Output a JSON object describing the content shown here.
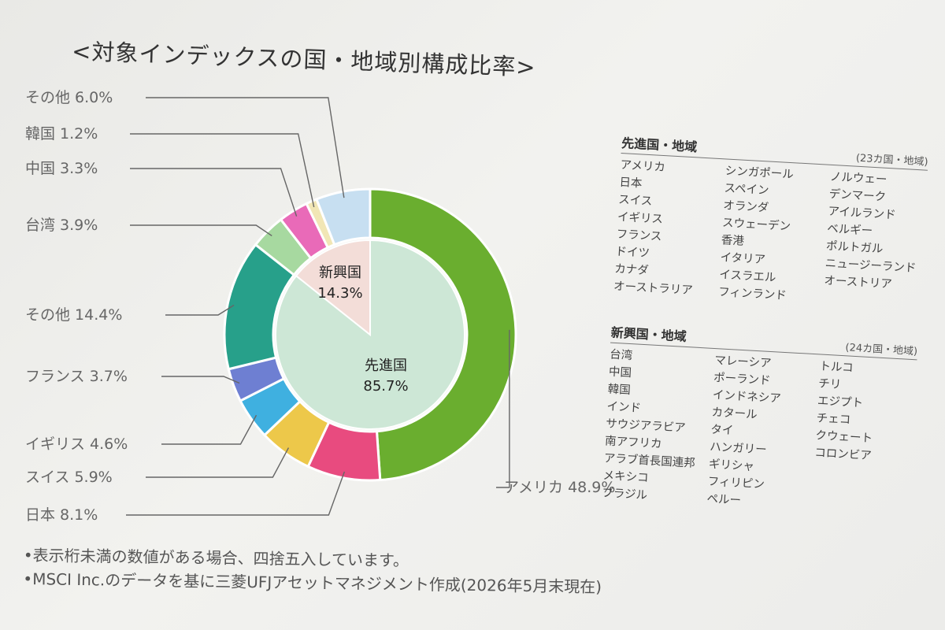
{
  "title": "<対象インデックスの国・地域別構成比率>",
  "chart_data": {
    "type": "pie",
    "title": "<対象インデックスの国・地域別構成比率>",
    "inner_ring": [
      {
        "name": "先進国",
        "value": 85.7,
        "label": "85.7%",
        "color": "#cde7d6"
      },
      {
        "name": "新興国",
        "value": 14.3,
        "label": "14.3%",
        "color": "#f3ddd8"
      }
    ],
    "outer_ring": [
      {
        "name": "アメリカ",
        "value": 48.9,
        "label": "アメリカ 48.9%",
        "color": "#6aae2f"
      },
      {
        "name": "日本",
        "value": 8.1,
        "label": "日本 8.1%",
        "color": "#e84b7f"
      },
      {
        "name": "スイス",
        "value": 5.9,
        "label": "スイス 5.9%",
        "color": "#edc84a"
      },
      {
        "name": "イギリス",
        "value": 4.6,
        "label": "イギリス 4.6%",
        "color": "#3fb0e0"
      },
      {
        "name": "フランス",
        "value": 3.7,
        "label": "フランス 3.7%",
        "color": "#6e7fd2"
      },
      {
        "name": "その他",
        "value": 14.4,
        "label": "その他 14.4%",
        "color": "#27a08a"
      },
      {
        "name": "台湾",
        "value": 3.9,
        "label": "台湾 3.9%",
        "color": "#a7d9a0"
      },
      {
        "name": "中国",
        "value": 3.3,
        "label": "中国 3.3%",
        "color": "#e96ab8"
      },
      {
        "name": "韓国",
        "value": 1.2,
        "label": "韓国 1.2%",
        "color": "#f1e6b5"
      },
      {
        "name": "その他",
        "value": 6.0,
        "label": "その他 6.0%",
        "color": "#c7dff1"
      }
    ]
  },
  "developed": {
    "heading": "先進国・地域",
    "count": "(23カ国・地域)",
    "col1": [
      "アメリカ",
      "日本",
      "スイス",
      "イギリス",
      "フランス",
      "ドイツ",
      "カナダ",
      "オーストラリア"
    ],
    "col2": [
      "シンガポール",
      "スペイン",
      "オランダ",
      "スウェーデン",
      "香港",
      "イタリア",
      "イスラエル",
      "フィンランド"
    ],
    "col3": [
      "ノルウェー",
      "デンマーク",
      "アイルランド",
      "ベルギー",
      "ポルトガル",
      "ニュージーランド",
      "オーストリア"
    ]
  },
  "emerging": {
    "heading": "新興国・地域",
    "count": "(24カ国・地域)",
    "col1": [
      "台湾",
      "中国",
      "韓国",
      "インド",
      "サウジアラビア",
      "南アフリカ",
      "アラブ首長国連邦",
      "メキシコ",
      "ブラジル"
    ],
    "col2": [
      "マレーシア",
      "ポーランド",
      "インドネシア",
      "カタール",
      "タイ",
      "ハンガリー",
      "ギリシャ",
      "フィリピン",
      "ペルー"
    ],
    "col3": [
      "トルコ",
      "チリ",
      "エジプト",
      "チェコ",
      "クウェート",
      "コロンビア"
    ]
  },
  "notes": [
    "•表示桁未満の数値がある場合、四捨五入しています。",
    "•MSCI Inc.のデータを基に三菱UFJアセットマネジメント作成(2026年5月末現在)"
  ]
}
